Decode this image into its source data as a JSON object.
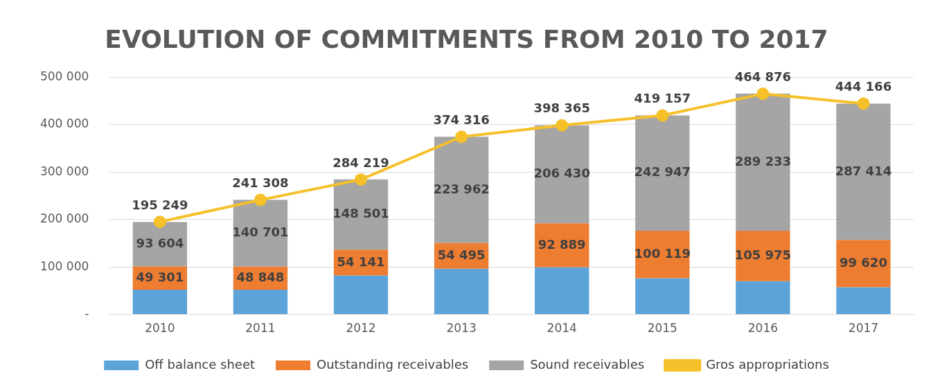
{
  "chart_data": {
    "type": "bar",
    "title": "EVOLUTION OF COMMITMENTS FROM 2010 TO 2017",
    "categories": [
      "2010",
      "2011",
      "2012",
      "2013",
      "2014",
      "2015",
      "2016",
      "2017"
    ],
    "stacked": true,
    "series": [
      {
        "name": "Off balance sheet",
        "color": "#5ba3d9",
        "values": [
          52000,
          52000,
          82000,
          96000,
          99000,
          76000,
          70000,
          57000
        ]
      },
      {
        "name": "Outstanding receivables",
        "color": "#ed7d31",
        "values": [
          49301,
          48848,
          54141,
          54495,
          92889,
          100119,
          105975,
          99620
        ],
        "value_labels": [
          "49 301",
          "48 848",
          "54 141",
          "54 495",
          "92 889",
          "100 119",
          "105 975",
          "99 620"
        ]
      },
      {
        "name": "Sound receivables",
        "color": "#a5a5a5",
        "values": [
          93604,
          140701,
          148501,
          223962,
          206430,
          242947,
          289233,
          287414
        ],
        "value_labels": [
          "93 604",
          "140 701",
          "148 501",
          "223 962",
          "206 430",
          "242 947",
          "289 233",
          "287 414"
        ]
      },
      {
        "name": "Gros appropriations",
        "type": "line",
        "color": "#f5c02a",
        "marker": "circle",
        "values": [
          195249,
          241308,
          284219,
          374316,
          398365,
          419157,
          464876,
          444166
        ],
        "value_labels": [
          "195 249",
          "241 308",
          "284 219",
          "374 316",
          "398 365",
          "419 157",
          "464 876",
          "444 166"
        ]
      }
    ],
    "ylim": [
      0,
      500000
    ],
    "yticks": [
      {
        "value": 0,
        "label": "-"
      },
      {
        "value": 100000,
        "label": "100 000"
      },
      {
        "value": 200000,
        "label": "200 000"
      },
      {
        "value": 300000,
        "label": "300 000"
      },
      {
        "value": 400000,
        "label": "400 000"
      },
      {
        "value": 500000,
        "label": "500 000"
      }
    ],
    "grid": "y",
    "legend": "bottom"
  }
}
